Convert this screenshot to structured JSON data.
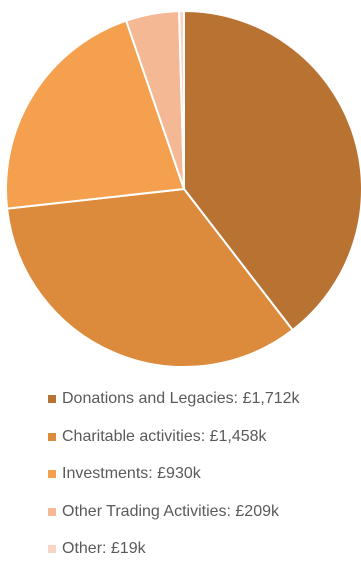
{
  "chart_data": {
    "type": "pie",
    "title": "",
    "legend_position": "bottom",
    "slices": [
      {
        "label": "Donations and Legacies: £1,712k",
        "value": 1712,
        "color": "#b87333"
      },
      {
        "label": "Charitable activities: £1,458k",
        "value": 1458,
        "color": "#dc8a3c"
      },
      {
        "label": "Investments: £930k",
        "value": 930,
        "color": "#f4a04e"
      },
      {
        "label": "Other Trading Activities: £209k",
        "value": 209,
        "color": "#f5b895"
      },
      {
        "label": "Other: £19k",
        "value": 19,
        "color": "#f8d5c6"
      }
    ]
  }
}
